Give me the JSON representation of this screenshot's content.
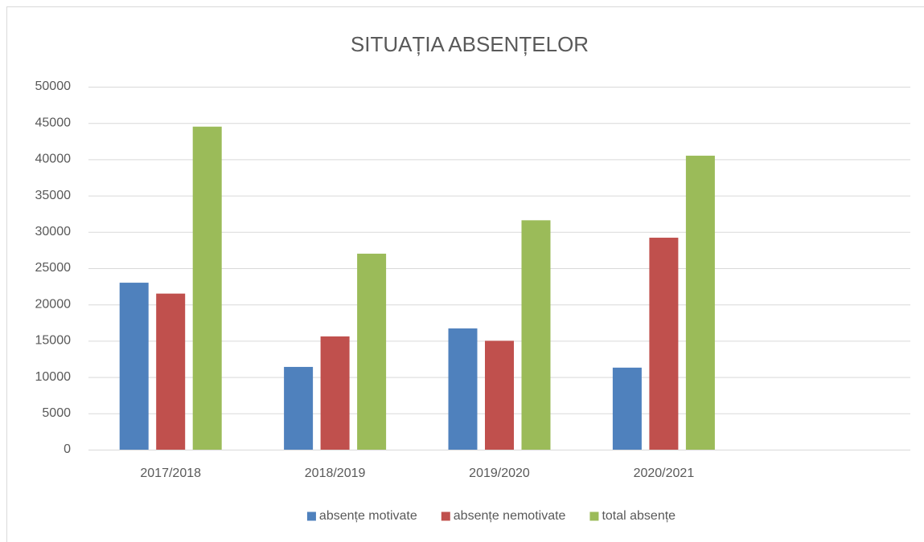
{
  "chart_data": {
    "type": "bar",
    "title": "SITUAȚIA ABSENȚELOR",
    "categories": [
      "2017/2018",
      "2018/2019",
      "2019/2020",
      "2020/2021",
      null
    ],
    "series": [
      {
        "name": "absențe motivate",
        "color": "#4f81bd",
        "values": [
          23000,
          11400,
          16700,
          11300,
          null
        ]
      },
      {
        "name": "absențe nemotivate",
        "color": "#c0504d",
        "values": [
          21500,
          15600,
          15000,
          29200,
          null
        ]
      },
      {
        "name": "total absențe",
        "color": "#9bbb59",
        "values": [
          44500,
          27000,
          31600,
          40500,
          null
        ]
      }
    ],
    "ylim": [
      0,
      50000
    ],
    "yticks": [
      0,
      5000,
      10000,
      15000,
      20000,
      25000,
      30000,
      35000,
      40000,
      45000,
      50000
    ],
    "grid": true,
    "legend": "bottom"
  }
}
